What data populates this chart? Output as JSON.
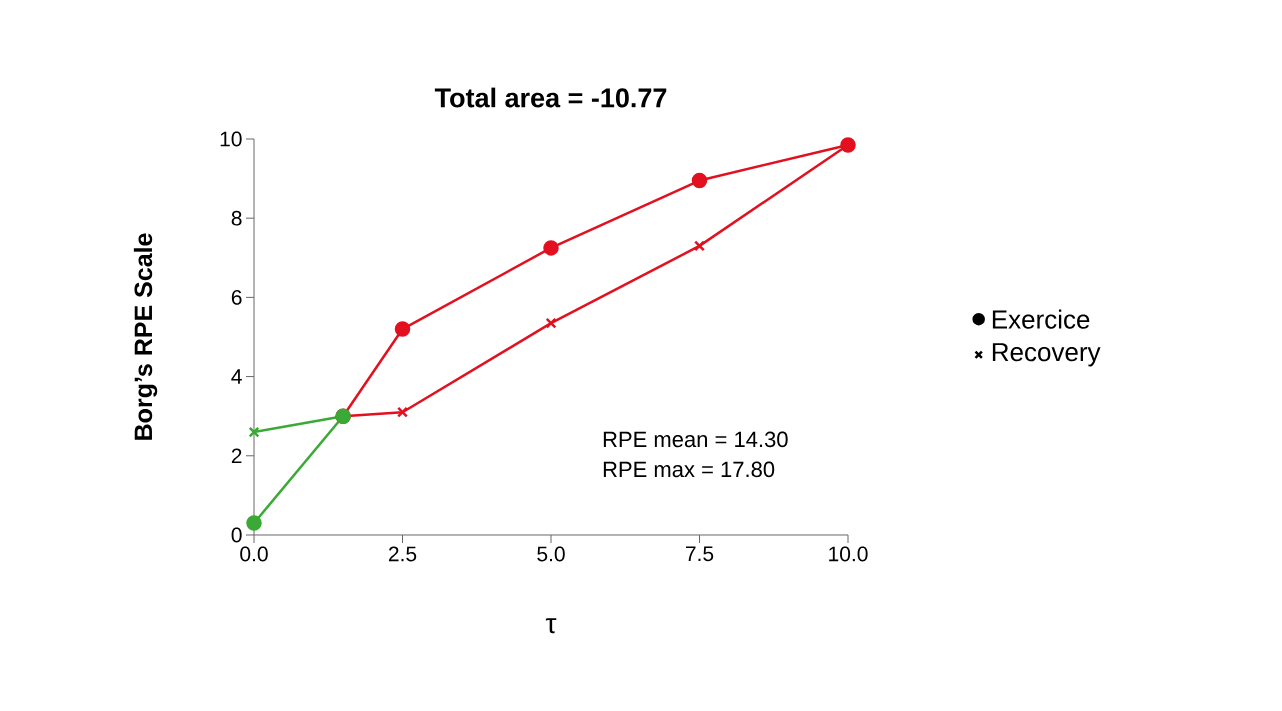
{
  "chart_data": {
    "type": "line",
    "title": "Total area = -10.77",
    "xlabel": "τ",
    "ylabel": "Borg’s RPE Scale",
    "series": [
      {
        "name": "Exercice",
        "marker": "circle",
        "color": "#e3101f",
        "x": [
          1.5,
          2.5,
          5,
          7.5,
          10
        ],
        "values": [
          3.0,
          5.2,
          7.25,
          8.95,
          9.85
        ]
      },
      {
        "name": "Recovery",
        "marker": "cross",
        "color": "#e3101f",
        "x": [
          1.5,
          2.5,
          5,
          7.5,
          10
        ],
        "values": [
          3.0,
          3.1,
          5.35,
          7.3,
          9.85
        ]
      },
      {
        "marker": "cross",
        "color": "#3aa935",
        "x": [
          0,
          1.5
        ],
        "values": [
          2.6,
          3.0
        ]
      },
      {
        "marker": "circle",
        "color": "#3aa935",
        "x": [
          0,
          1.5
        ],
        "values": [
          0.3,
          3.0
        ]
      }
    ],
    "xlim": [
      0,
      10
    ],
    "ylim": [
      0,
      10
    ],
    "xticks": [
      {
        "value": 0,
        "label": "0.0"
      },
      {
        "value": 2.5,
        "label": "2.5"
      },
      {
        "value": 5,
        "label": "5.0"
      },
      {
        "value": 7.5,
        "label": "7.5"
      },
      {
        "value": 10,
        "label": "10.0"
      }
    ],
    "yticks": [
      0,
      2,
      4,
      6,
      8,
      10
    ],
    "grid": false,
    "legend": "right",
    "annotations": [
      "RPE mean = 14.30",
      "RPE max = 17.80"
    ]
  }
}
